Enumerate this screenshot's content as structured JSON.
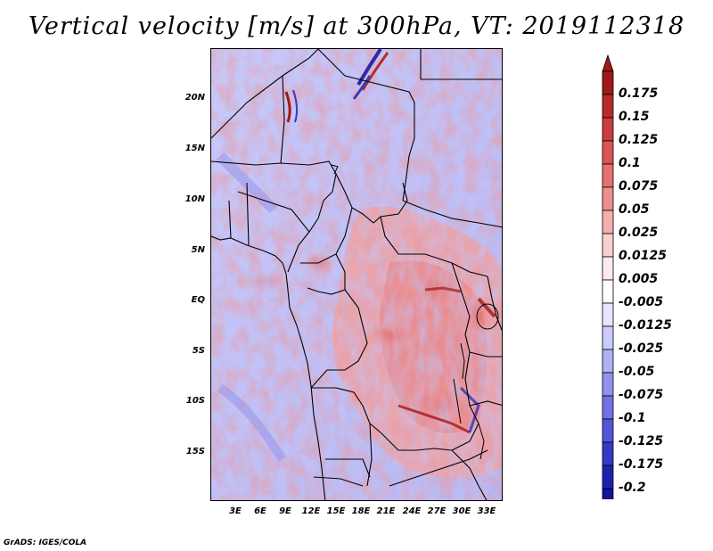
{
  "title": "Vertical velocity [m/s] at 300hPa, VT: 2019112318",
  "credit": "GrADS: IGES/COLA",
  "map": {
    "region": "Central Africa",
    "lat_labels": [
      "20N",
      "15N",
      "10N",
      "5N",
      "EQ",
      "5S",
      "10S",
      "15S"
    ],
    "lon_labels": [
      "3E",
      "6E",
      "9E",
      "12E",
      "15E",
      "18E",
      "21E",
      "24E",
      "27E",
      "30E",
      "33E"
    ]
  },
  "colorbar": {
    "labels": [
      "0.175",
      "0.15",
      "0.125",
      "0.1",
      "0.075",
      "0.05",
      "0.025",
      "0.0125",
      "0.005",
      "-0.005",
      "-0.0125",
      "-0.025",
      "-0.05",
      "-0.075",
      "-0.1",
      "-0.125",
      "-0.175",
      "-0.2"
    ],
    "colors": [
      "#a01818",
      "#b82a2a",
      "#cc3c3c",
      "#dc5454",
      "#e67070",
      "#ee8e8e",
      "#f4aeae",
      "#f9cfcf",
      "#fdeaea",
      "#ffffff",
      "#e6e6ff",
      "#cbcbfb",
      "#b0b0f5",
      "#9191ee",
      "#7272e4",
      "#5454d8",
      "#3838c8",
      "#2020b0",
      "#12129a"
    ],
    "top_arrow_color": "#a01818",
    "bottom_arrow_color": "#12129a"
  }
}
